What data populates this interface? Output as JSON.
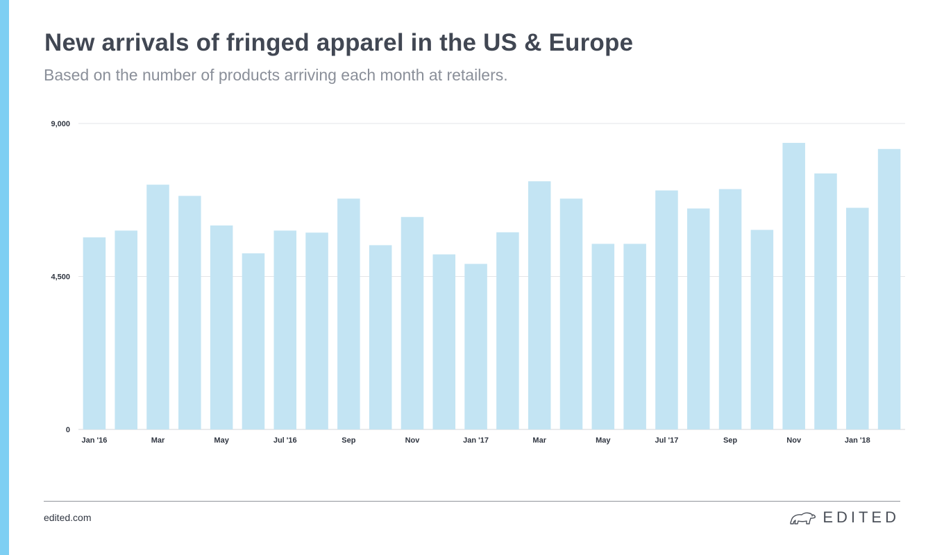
{
  "header": {
    "title": "New arrivals of fringed apparel in the US & Europe",
    "subtitle": "Based on the number of products arriving each month at retailers."
  },
  "footer": {
    "url": "edited.com",
    "brand": "EDITED",
    "brand_icon": "polar-bear-icon"
  },
  "colors": {
    "accent": "#7ecff3",
    "bar": "#c3e4f3",
    "grid": "#e3e5e8",
    "axis": "#d3d6da"
  },
  "chart_data": {
    "type": "bar",
    "title": "New arrivals of fringed apparel in the US & Europe",
    "subtitle": "Based on the number of products arriving each month at retailers.",
    "xlabel": "",
    "ylabel": "",
    "ylim": [
      0,
      9000
    ],
    "yticks": [
      0,
      4500,
      9000
    ],
    "ytick_labels": [
      "0",
      "4,500",
      "9,000"
    ],
    "grid": true,
    "legend": "none",
    "categories": [
      "Jan '16",
      "Feb '16",
      "Mar '16",
      "Apr '16",
      "May '16",
      "Jun '16",
      "Jul '16",
      "Aug '16",
      "Sep '16",
      "Oct '16",
      "Nov '16",
      "Dec '16",
      "Jan '17",
      "Feb '17",
      "Mar '17",
      "Apr '17",
      "May '17",
      "Jun '17",
      "Jul '17",
      "Aug '17",
      "Sep '17",
      "Oct '17",
      "Nov '17",
      "Dec '17",
      "Jan '18",
      "Feb '18"
    ],
    "x_tick_labels": [
      "Jan '16",
      "",
      "Mar",
      "",
      "May",
      "",
      "Jul '16",
      "",
      "Sep",
      "",
      "Nov",
      "",
      "Jan '17",
      "",
      "Mar",
      "",
      "May",
      "",
      "Jul '17",
      "",
      "Sep",
      "",
      "Nov",
      "",
      "Jan '18",
      ""
    ],
    "values": [
      5650,
      5850,
      7200,
      6870,
      6000,
      5180,
      5850,
      5790,
      6790,
      5420,
      6250,
      5150,
      4870,
      5800,
      7300,
      6790,
      5460,
      5460,
      7030,
      6500,
      7070,
      5870,
      8430,
      7530,
      6520,
      8250
    ]
  }
}
